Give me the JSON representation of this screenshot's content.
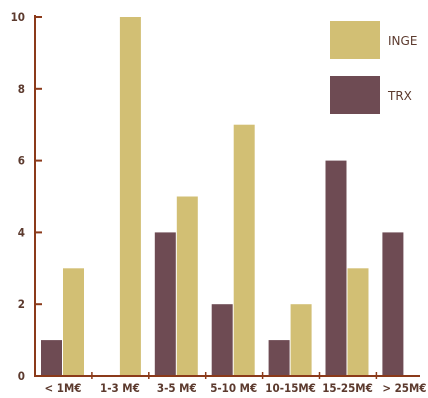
{
  "chart_data": {
    "type": "bar",
    "title": "",
    "xlabel": "",
    "ylabel": "",
    "categories": [
      "< 1M€",
      "1-3 M€",
      "3-5 M€",
      "5-10 M€",
      "10-15M€",
      "15-25M€",
      "> 25M€"
    ],
    "ylim": [
      0,
      10
    ],
    "yticks": [
      0,
      2,
      4,
      6,
      8,
      10
    ],
    "grid": false,
    "legend_position": "top-right",
    "series": [
      {
        "name": "TRX",
        "color": "#6e4b53",
        "values": [
          1,
          0,
          4,
          2,
          1,
          6,
          4
        ]
      },
      {
        "name": "INGE",
        "color": "#d2bf74",
        "values": [
          3,
          10,
          5,
          7,
          2,
          3,
          0
        ]
      }
    ],
    "legend_order": [
      "INGE",
      "TRX"
    ],
    "axis_color": "#8b3a1a"
  }
}
